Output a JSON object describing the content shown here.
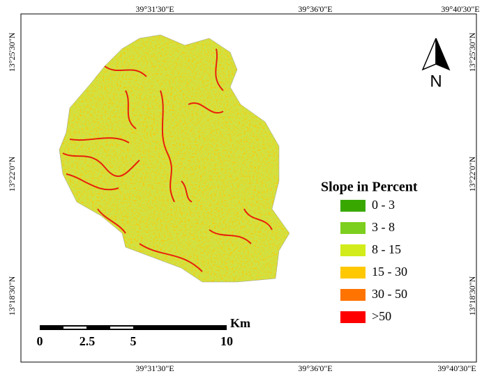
{
  "map": {
    "top_labels": [
      "39°31'30\"E",
      "39°36'0\"E",
      "39°40'30\"E"
    ],
    "bottom_labels": [
      "39°31'30\"E",
      "39°36'0\"E",
      "39°40'30\"E"
    ],
    "left_labels": [
      "13°25'30\"N",
      "13°22'0\"N",
      "13°18'30\"N"
    ],
    "right_labels": [
      "13°25'30\"N",
      "13°22'0\"N",
      "13°18'30\"N"
    ],
    "north": "N",
    "legend": {
      "title": "Slope in Percent",
      "items": [
        {
          "label": "0 - 3",
          "color": "#38a800"
        },
        {
          "label": "3 - 8",
          "color": "#7ccf1e"
        },
        {
          "label": "8 - 15",
          "color": "#d1ec1a"
        },
        {
          "label": "15 - 30",
          "color": "#ffc800"
        },
        {
          "label": "30 - 50",
          "color": "#ff7300"
        },
        {
          "label": ">50",
          "color": "#ff0000"
        }
      ]
    },
    "scale": {
      "labels": [
        "0",
        "2.5",
        "5",
        "10"
      ],
      "unit": "Km"
    }
  }
}
